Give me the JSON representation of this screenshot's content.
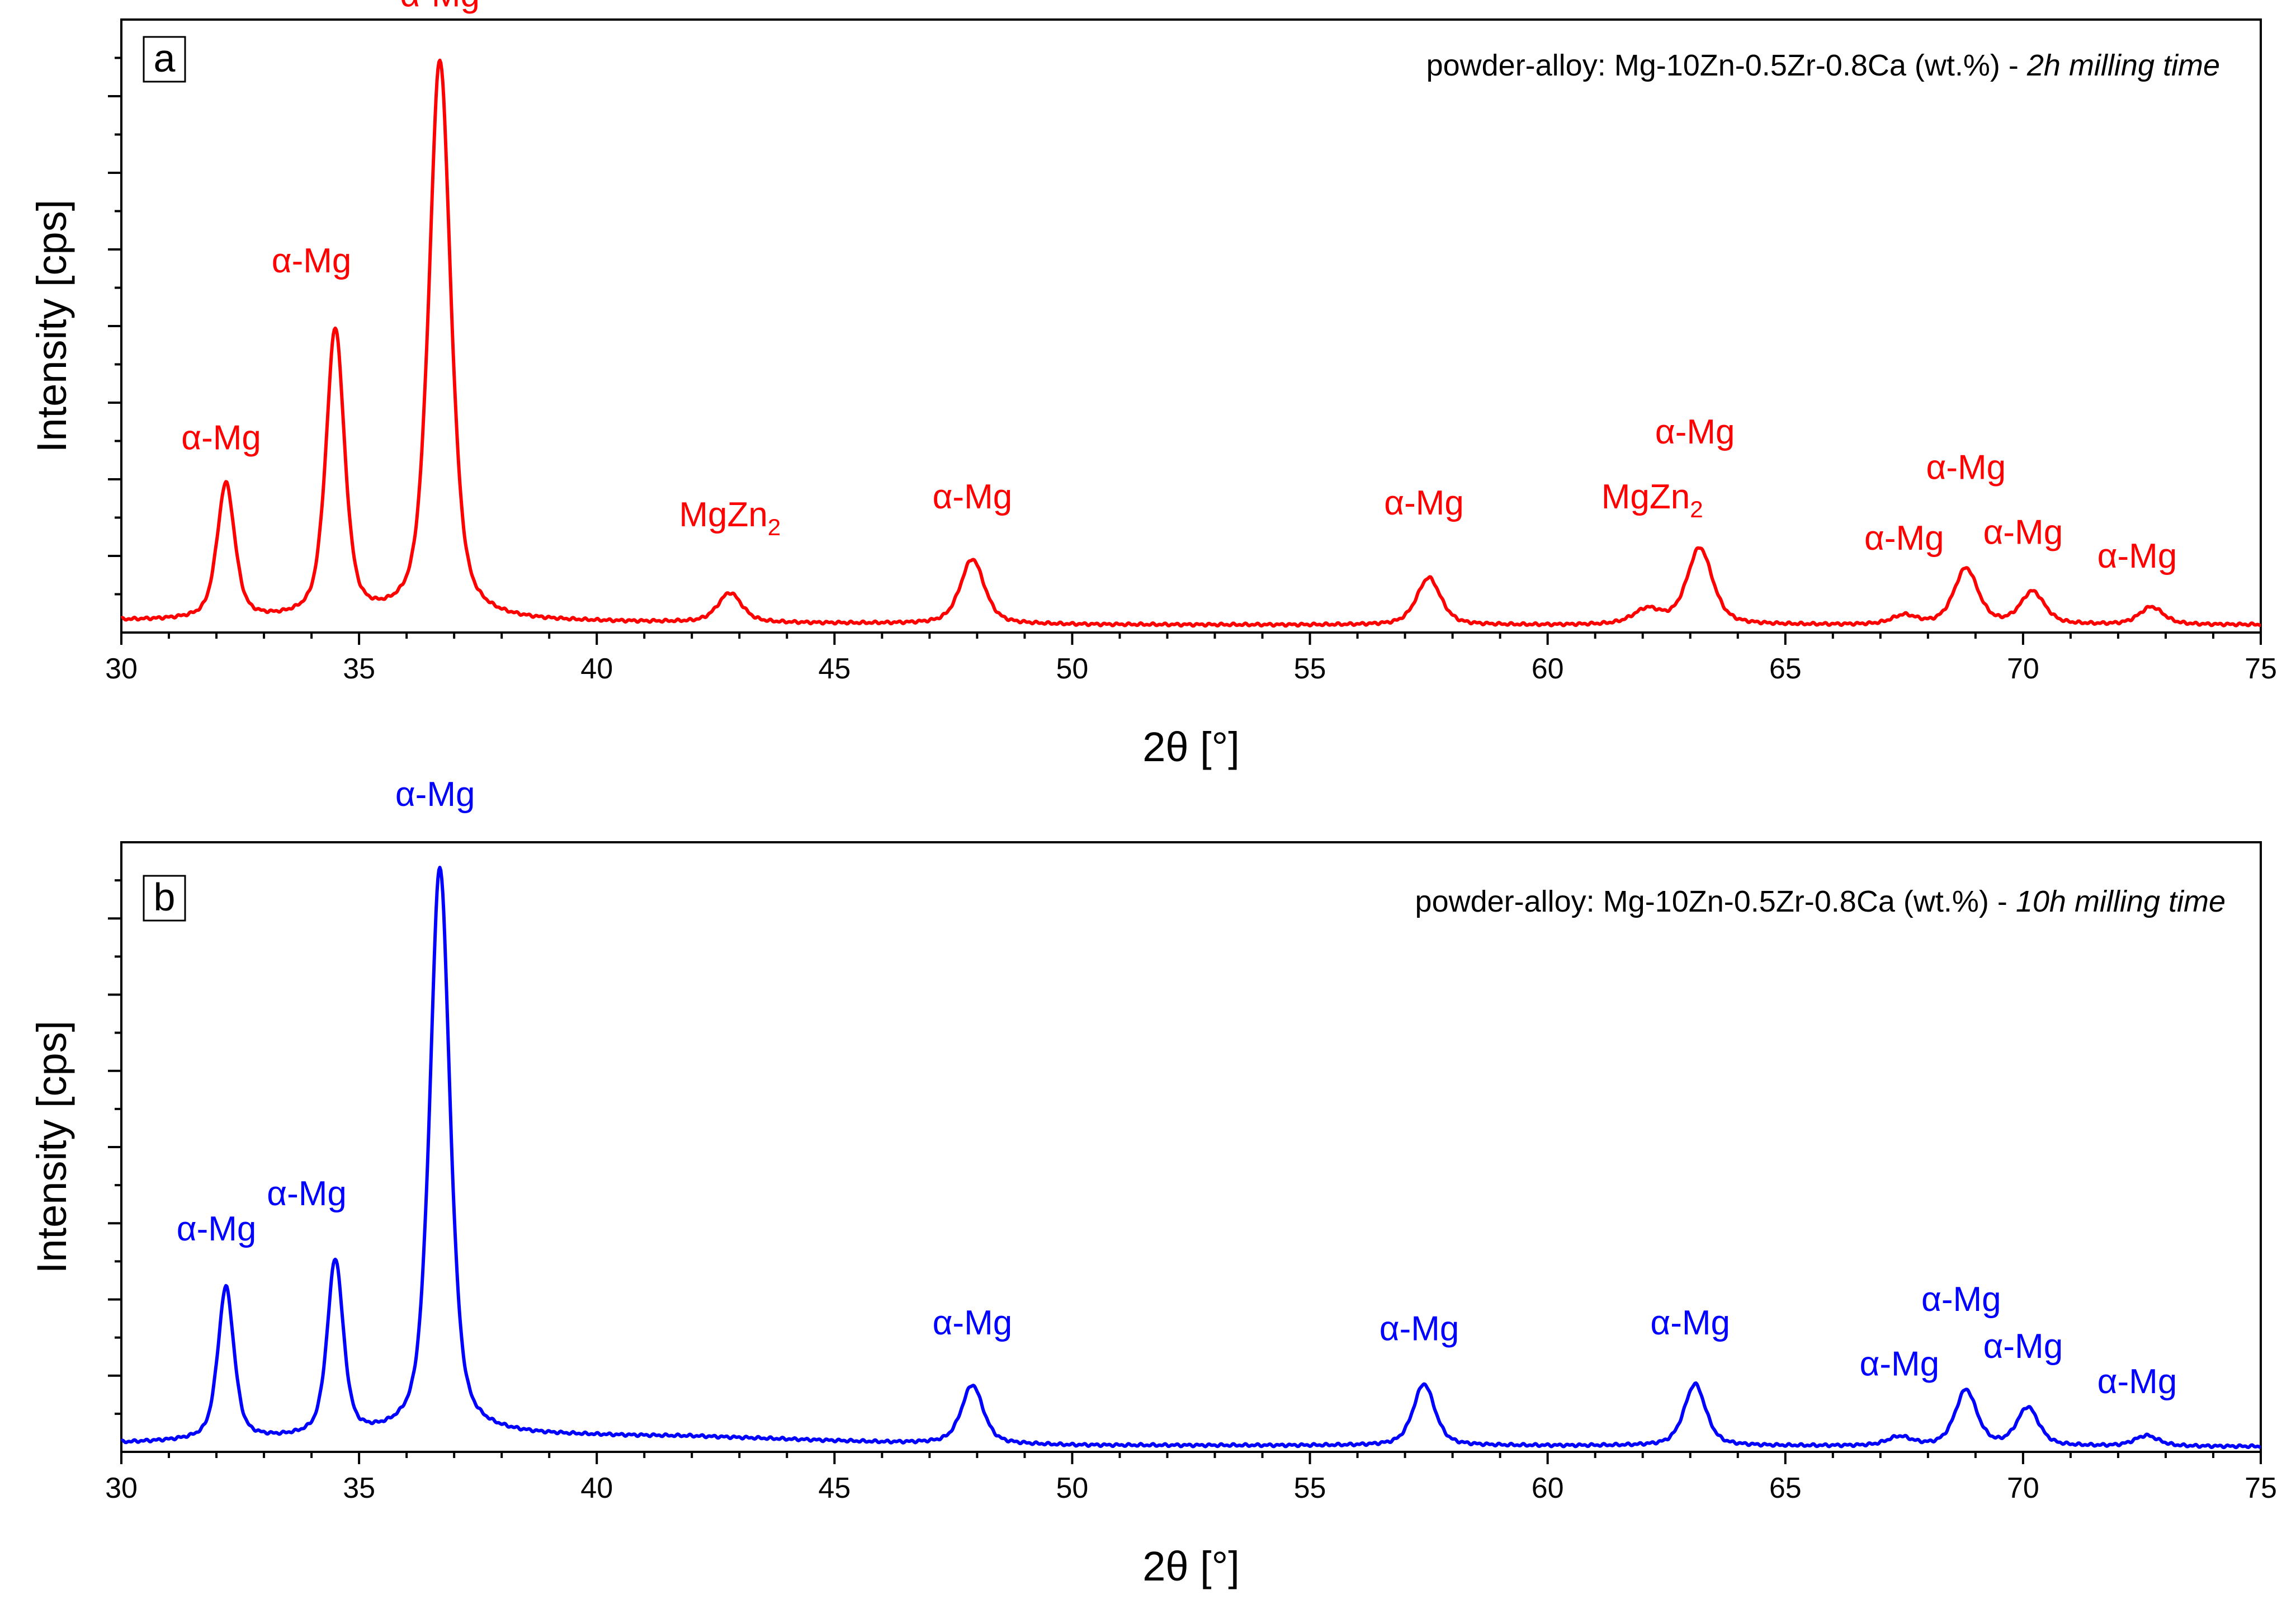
{
  "colors": {
    "panel_a": "#ff0000",
    "panel_b": "#0000ff",
    "axis": "#000000"
  },
  "chart_data": [
    {
      "type": "line",
      "panel": "a",
      "info": {
        "prefix": "powder-alloy: Mg-10Zn-0.5Zr-0.8Ca (wt.%) - ",
        "italic": "2h milling time"
      },
      "xlabel": "2θ [°]",
      "ylabel": "Intensity [cps]",
      "xlim": [
        30,
        75
      ],
      "ylim": [
        0,
        100
      ],
      "xticks": [
        30,
        35,
        40,
        45,
        50,
        55,
        60,
        65,
        70,
        75
      ],
      "baseline": [
        [
          30,
          2.0
        ],
        [
          40,
          1.7
        ],
        [
          50,
          1.3
        ],
        [
          60,
          1.2
        ],
        [
          75,
          1.3
        ]
      ],
      "peaks": [
        {
          "x": 32.2,
          "h": 23,
          "w": 0.22
        },
        {
          "x": 34.5,
          "h": 49,
          "w": 0.23
        },
        {
          "x": 36.7,
          "h": 95,
          "w": 0.27
        },
        {
          "x": 42.8,
          "h": 5,
          "w": 0.3
        },
        {
          "x": 47.9,
          "h": 11,
          "w": 0.3
        },
        {
          "x": 57.5,
          "h": 8,
          "w": 0.3
        },
        {
          "x": 62.1,
          "h": 2.5,
          "w": 0.35
        },
        {
          "x": 63.2,
          "h": 13,
          "w": 0.32
        },
        {
          "x": 67.5,
          "h": 1.5,
          "w": 0.3
        },
        {
          "x": 68.8,
          "h": 9.5,
          "w": 0.3
        },
        {
          "x": 70.2,
          "h": 5.5,
          "w": 0.3
        },
        {
          "x": 72.7,
          "h": 3,
          "w": 0.3
        }
      ],
      "labels": [
        {
          "text": "α-Mg",
          "x": 32.1,
          "y": 31
        },
        {
          "text": "α-Mg",
          "x": 34.0,
          "y": 61
        },
        {
          "text": "α-Mg",
          "x": 36.7,
          "y": 106
        },
        {
          "text": "MgZn",
          "sub": "2",
          "x": 42.8,
          "y": 18
        },
        {
          "text": "α-Mg",
          "x": 47.9,
          "y": 21
        },
        {
          "text": "α-Mg",
          "x": 57.4,
          "y": 20
        },
        {
          "text": "α-Mg",
          "x": 63.1,
          "y": 32
        },
        {
          "text": "MgZn",
          "sub": "2",
          "x": 62.2,
          "y": 21
        },
        {
          "text": "α-Mg",
          "x": 67.5,
          "y": 14
        },
        {
          "text": "α-Mg",
          "x": 68.8,
          "y": 26
        },
        {
          "text": "α-Mg",
          "x": 70.0,
          "y": 15
        },
        {
          "text": "α-Mg",
          "x": 72.4,
          "y": 11
        }
      ]
    },
    {
      "type": "line",
      "panel": "b",
      "info": {
        "prefix": "powder-alloy: Mg-10Zn-0.5Zr-0.8Ca (wt.%) - ",
        "italic": "10h milling time"
      },
      "xlabel": "2θ [°]",
      "ylabel": "Intensity [cps]",
      "xlim": [
        30,
        75
      ],
      "ylim": [
        0,
        100
      ],
      "xticks": [
        30,
        35,
        40,
        45,
        50,
        55,
        60,
        65,
        70,
        75
      ],
      "baseline": [
        [
          30,
          1.5
        ],
        [
          38,
          2.8
        ],
        [
          42,
          2.6
        ],
        [
          46,
          1.6
        ],
        [
          50,
          1.1
        ],
        [
          75,
          0.9
        ]
      ],
      "peaks": [
        {
          "x": 32.2,
          "h": 26,
          "w": 0.2
        },
        {
          "x": 34.5,
          "h": 30,
          "w": 0.2
        },
        {
          "x": 36.7,
          "h": 97,
          "w": 0.25
        },
        {
          "x": 47.9,
          "h": 10,
          "w": 0.27
        },
        {
          "x": 57.4,
          "h": 10.5,
          "w": 0.27
        },
        {
          "x": 63.1,
          "h": 10.5,
          "w": 0.27
        },
        {
          "x": 67.4,
          "h": 1.5,
          "w": 0.3
        },
        {
          "x": 68.8,
          "h": 9.5,
          "w": 0.27
        },
        {
          "x": 70.1,
          "h": 6.5,
          "w": 0.27
        },
        {
          "x": 72.6,
          "h": 1.8,
          "w": 0.3
        }
      ],
      "labels": [
        {
          "text": "α-Mg",
          "x": 32.0,
          "y": 36
        },
        {
          "text": "α-Mg",
          "x": 33.9,
          "y": 42
        },
        {
          "text": "α-Mg",
          "x": 36.6,
          "y": 110
        },
        {
          "text": "α-Mg",
          "x": 47.9,
          "y": 20
        },
        {
          "text": "α-Mg",
          "x": 57.3,
          "y": 19
        },
        {
          "text": "α-Mg",
          "x": 63.0,
          "y": 20
        },
        {
          "text": "α-Mg",
          "x": 67.4,
          "y": 13
        },
        {
          "text": "α-Mg",
          "x": 68.7,
          "y": 24
        },
        {
          "text": "α-Mg",
          "x": 70.0,
          "y": 16
        },
        {
          "text": "α-Mg",
          "x": 72.4,
          "y": 10
        }
      ]
    }
  ]
}
